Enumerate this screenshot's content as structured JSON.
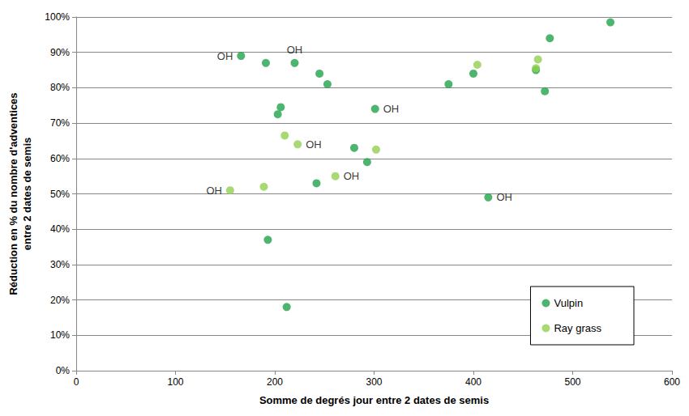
{
  "chart_data": {
    "type": "scatter",
    "x_label": "Somme de degrés jour entre 2 dates de semis",
    "y_label": "Réduction en % du nombre d'adventices\nentre 2 dates de semis",
    "xlim": [
      0,
      600
    ],
    "xticks": [
      0,
      100,
      200,
      300,
      400,
      500,
      600
    ],
    "ylim": [
      0,
      100
    ],
    "yticks": [
      {
        "value": 0,
        "label": "0%"
      },
      {
        "value": 10,
        "label": "10%"
      },
      {
        "value": 20,
        "label": "20%"
      },
      {
        "value": 30,
        "label": "30%"
      },
      {
        "value": 40,
        "label": "40%"
      },
      {
        "value": 50,
        "label": "50%"
      },
      {
        "value": 60,
        "label": "60%"
      },
      {
        "value": 70,
        "label": "70%"
      },
      {
        "value": 80,
        "label": "80%"
      },
      {
        "value": 90,
        "label": "90%"
      },
      {
        "value": 100,
        "label": "100%"
      }
    ],
    "grid": "y",
    "legend": "lower right",
    "marker": "circle",
    "series": [
      {
        "name": "Vulpin",
        "color": "#1fa34a",
        "x": [
          166,
          191,
          220,
          245,
          253,
          206,
          203,
          301,
          280,
          293,
          242,
          193,
          212,
          375,
          400,
          415,
          463,
          472,
          477,
          538
        ],
        "values": [
          89,
          87,
          87,
          84,
          81,
          74.5,
          72.5,
          74,
          63,
          59,
          53,
          37,
          18,
          81,
          84,
          49,
          85,
          79,
          94,
          98.5
        ]
      },
      {
        "name": "Ray grass",
        "color": "#92d050",
        "x": [
          155,
          189,
          210,
          223,
          261,
          302,
          404,
          465,
          463
        ],
        "values": [
          51,
          52,
          66.5,
          64,
          55,
          62.5,
          86.5,
          88,
          85.5
        ]
      }
    ],
    "annotations": [
      {
        "text": "OH",
        "x": 166,
        "y": 89,
        "position": "left"
      },
      {
        "text": "OH",
        "x": 220,
        "y": 87,
        "position": "top"
      },
      {
        "text": "OH",
        "x": 301,
        "y": 74,
        "position": "right"
      },
      {
        "text": "OH",
        "x": 415,
        "y": 49,
        "position": "right"
      },
      {
        "text": "OH",
        "x": 155,
        "y": 51,
        "position": "left"
      },
      {
        "text": "OH",
        "x": 223,
        "y": 64,
        "position": "right"
      },
      {
        "text": "OH",
        "x": 261,
        "y": 55,
        "position": "right"
      }
    ]
  }
}
